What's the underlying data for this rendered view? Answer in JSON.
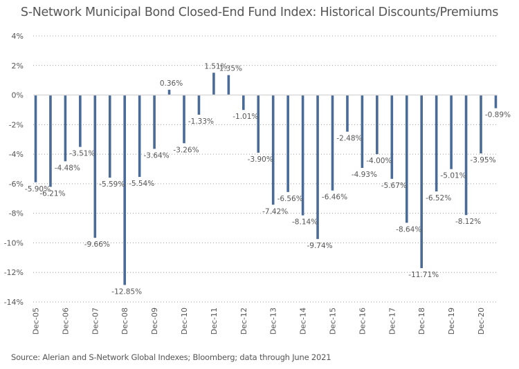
{
  "chart_data": {
    "type": "bar",
    "title": "S-Network Municipal Bond Closed-End Fund Index: Historical Discounts/Premiums",
    "xlabel": "",
    "ylabel": "",
    "ylim": [
      -14,
      4
    ],
    "yticks": [
      4,
      2,
      0,
      -2,
      -4,
      -6,
      -8,
      -10,
      -12,
      -14
    ],
    "ytick_labels": [
      "4%",
      "2%",
      "0%",
      "-2%",
      "-4%",
      "-6%",
      "-8%",
      "-10%",
      "-12%",
      "-14%"
    ],
    "grid": true,
    "legend": null,
    "x_tick_labels": [
      "Dec-05",
      "Dec-06",
      "Dec-07",
      "Dec-08",
      "Dec-09",
      "Dec-10",
      "Dec-11",
      "Dec-12",
      "Dec-13",
      "Dec-14",
      "Dec-15",
      "Dec-16",
      "Dec-17",
      "Dec-18",
      "Dec-19",
      "Dec-20"
    ],
    "x_tick_every": 2,
    "bar_color": "#4a6b98",
    "series": [
      {
        "name": "Discount/Premium",
        "values": [
          -5.9,
          -6.21,
          -4.48,
          -3.51,
          -9.66,
          -5.59,
          -12.85,
          -5.54,
          -3.64,
          0.36,
          -3.26,
          -1.33,
          1.51,
          1.35,
          -1.01,
          -3.9,
          -7.42,
          -6.56,
          -8.14,
          -9.74,
          -6.46,
          -2.48,
          -4.93,
          -4.0,
          -5.67,
          -8.64,
          -11.71,
          -6.52,
          -5.01,
          -8.12,
          -3.95,
          -0.89
        ],
        "labels": [
          "-5.90%",
          "-6.21%",
          "-4.48%",
          "-3.51%",
          "-9.66%",
          "-5.59%",
          "-12.85%",
          "-5.54%",
          "-3.64%",
          "0.36%",
          "-3.26%",
          "-1.33%",
          "1.51%",
          "1.35%",
          "-1.01%",
          "-3.90%",
          "-7.42%",
          "-6.56%",
          "-8.14%",
          "-9.74%",
          "-6.46%",
          "-2.48%",
          "-4.93%",
          "-4.00%",
          "-5.67%",
          "-8.64%",
          "-11.71%",
          "-6.52%",
          "-5.01%",
          "-8.12%",
          "-3.95%",
          "-0.89%"
        ]
      }
    ]
  },
  "source": "Source: Alerian and S-Network Global Indexes; Bloomberg; data through June 2021"
}
